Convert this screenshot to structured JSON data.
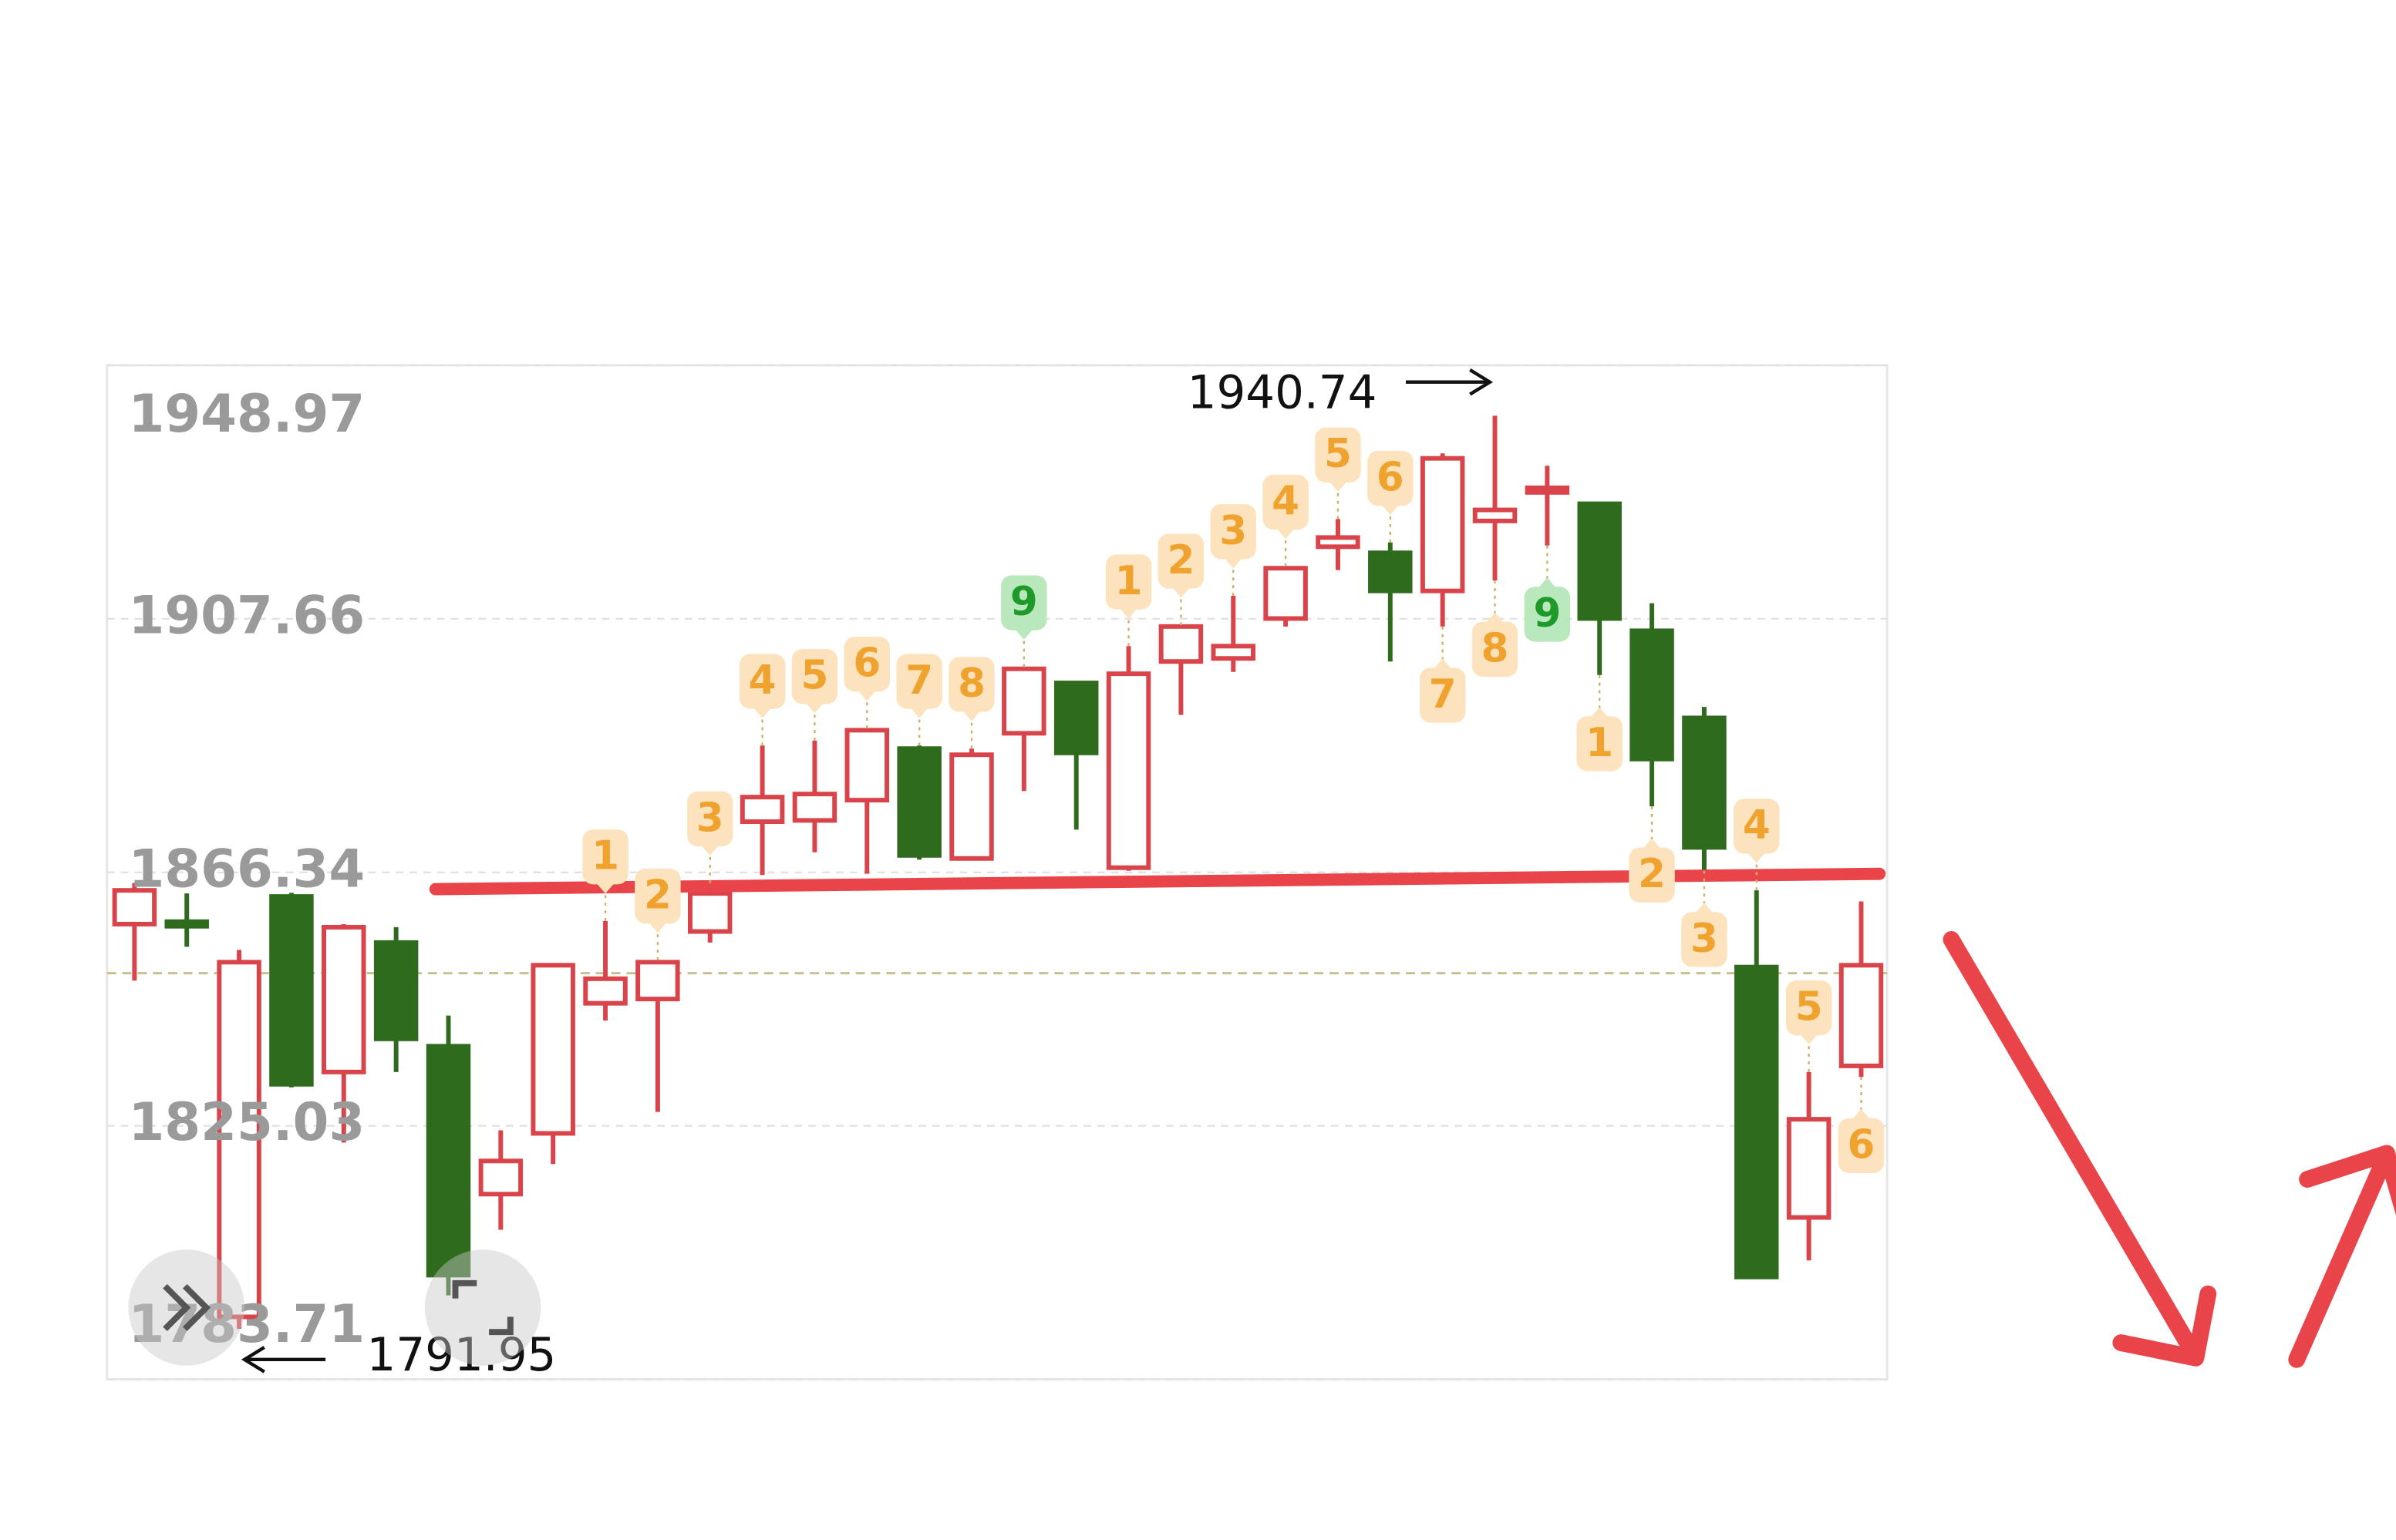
{
  "chart_data": {
    "type": "candlestick",
    "open": [
      1857.9,
      1858.3,
      1793.9,
      1862.4,
      1833.8,
      1854.9,
      1838.0,
      1813.9,
      1823.8,
      1845.0,
      1845.7,
      1856.7,
      1874.6,
      1874.8,
      1878.1,
      1886.5,
      1868.6,
      1889.0,
      1897.2,
      1867.1,
      1900.7,
      1901.2,
      1907.7,
      1919.4,
      1918.4,
      1912.2,
      1923.6,
      1928.8,
      1926.4,
      1905.7,
      1891.5,
      1850.9,
      1810.1,
      1834.8
    ],
    "high": [
      1864.6,
      1862.9,
      1853.7,
      1863.0,
      1857.9,
      1857.4,
      1843.0,
      1824.3,
      1851.5,
      1858.4,
      1852.0,
      1864.6,
      1887.0,
      1887.8,
      1889.8,
      1887.0,
      1886.5,
      1899.8,
      1897.5,
      1903.2,
      1906.6,
      1911.4,
      1916.2,
      1923.9,
      1920.1,
      1934.6,
      1940.74,
      1932.6,
      1926.7,
      1910.2,
      1893.3,
      1863.4,
      1833.8,
      1861.6
    ],
    "low": [
      1848.7,
      1854.2,
      1791.95,
      1831.3,
      1822.3,
      1833.8,
      1797.4,
      1808.1,
      1818.8,
      1842.2,
      1827.3,
      1854.9,
      1865.9,
      1869.6,
      1866.1,
      1868.4,
      1868.3,
      1879.6,
      1873.3,
      1866.6,
      1892.0,
      1899.0,
      1906.4,
      1915.6,
      1900.7,
      1906.4,
      1913.9,
      1919.6,
      1898.5,
      1877.1,
      1866.6,
      1800.2,
      1803.1,
      1833.0
    ],
    "close": [
      1863.4,
      1858.0,
      1851.7,
      1831.8,
      1857.4,
      1839.2,
      1800.7,
      1819.3,
      1851.2,
      1849.0,
      1851.7,
      1862.9,
      1878.6,
      1879.1,
      1889.5,
      1869.1,
      1885.5,
      1899.5,
      1885.8,
      1898.7,
      1906.4,
      1903.2,
      1915.9,
      1920.9,
      1912.2,
      1933.8,
      1925.4,
      1929.0,
      1907.7,
      1884.8,
      1870.4,
      1800.4,
      1826.1,
      1851.2
    ],
    "td_counts": [
      null,
      null,
      null,
      null,
      null,
      null,
      null,
      null,
      null,
      1,
      2,
      3,
      4,
      5,
      6,
      7,
      8,
      9,
      null,
      1,
      2,
      3,
      4,
      5,
      6,
      7,
      8,
      9,
      1,
      2,
      3,
      4,
      5,
      6
    ],
    "td_positions": [
      null,
      null,
      null,
      null,
      null,
      null,
      null,
      null,
      null,
      "above",
      "above",
      "above",
      "above",
      "above",
      "above",
      "above",
      "above",
      "above",
      null,
      "above",
      "above",
      "above",
      "above",
      "above",
      "above",
      "below",
      "below",
      "below",
      "below",
      "below",
      "below",
      "above",
      "above",
      "below"
    ],
    "td_setup_length": 9,
    "up_color": "#d9434a",
    "down_color": "#2e6b1c",
    "td_color": "#f0a22e",
    "td_bg": "#fde3bd",
    "td_complete_color": "#1f9a2a",
    "td_complete_bg": "#b8e8bb",
    "ylim": [
      1783.71,
      1948.97
    ],
    "yticks": [
      1783.71,
      1825.03,
      1866.34,
      1907.66,
      1948.97
    ],
    "grid": true,
    "price_line": 1849.9,
    "support_line": {
      "start": 1863.6,
      "end": 1866.1,
      "color": "#e8444a"
    },
    "max_price": 1940.74,
    "min_price": 1791.95
  }
}
